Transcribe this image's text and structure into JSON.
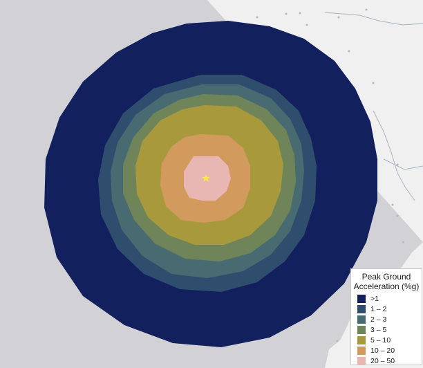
{
  "map": {
    "land_color": "#f0f0f0",
    "ocean_color": "#d2d2d6",
    "epicenter": {
      "marker": "star-icon",
      "color": "#f7e74a"
    }
  },
  "legend": {
    "title_line1": "Peak Ground",
    "title_line2": "Acceleration (%g)",
    "items": [
      {
        "label": ">1",
        "color": "#13205e"
      },
      {
        "label": "1 – 2",
        "color": "#2f4e6e"
      },
      {
        "label": "2 – 3",
        "color": "#486b72"
      },
      {
        "label": "3 – 5",
        "color": "#70845a"
      },
      {
        "label": "5 – 10",
        "color": "#a89a3c"
      },
      {
        "label": "10 – 20",
        "color": "#d39a5e"
      },
      {
        "label": "20 – 50",
        "color": "#e8b7b3"
      }
    ]
  }
}
